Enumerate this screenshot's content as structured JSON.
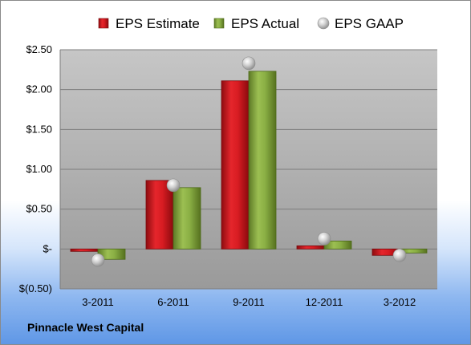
{
  "company": "Pinnacle West Capital",
  "chart_data": {
    "type": "bar",
    "categories": [
      "3-2011",
      "6-2011",
      "9-2011",
      "12-2011",
      "3-2012"
    ],
    "series": [
      {
        "name": "EPS Estimate",
        "kind": "bar",
        "color": "#c0141c",
        "values": [
          -0.03,
          0.86,
          2.11,
          0.04,
          -0.08
        ]
      },
      {
        "name": "EPS Actual",
        "kind": "bar",
        "color": "#7fa03a",
        "values": [
          -0.13,
          0.77,
          2.23,
          0.1,
          -0.05
        ]
      },
      {
        "name": "EPS GAAP",
        "kind": "marker",
        "color": "#b8b8b8",
        "values": [
          -0.14,
          0.8,
          2.33,
          0.13,
          -0.08
        ]
      }
    ],
    "yticks": [
      "$(0.50)",
      "$-",
      "$0.50",
      "$1.00",
      "$1.50",
      "$2.00",
      "$2.50"
    ],
    "ylim": [
      -0.5,
      2.5
    ],
    "grid": true,
    "legend_position": "top"
  }
}
